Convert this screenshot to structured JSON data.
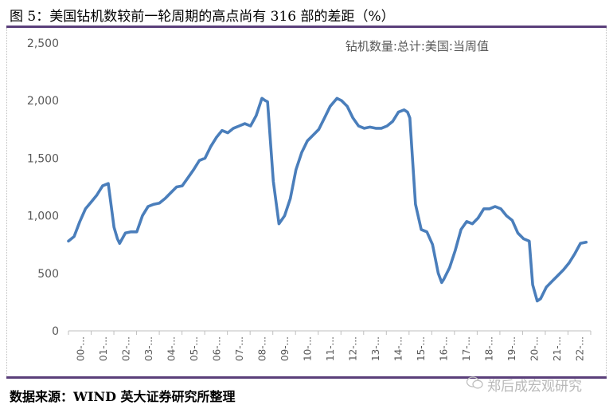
{
  "figure": {
    "title": "图 5：美国钻机数较前一轮周期的高点尚有 316 部的差距（%）",
    "source": "数据来源：WIND  英大证券研究所整理",
    "watermark": "郑后成宏观研究"
  },
  "chart_data": {
    "type": "line",
    "title": "",
    "xlabel": "",
    "ylabel": "",
    "ylim": [
      0,
      2500
    ],
    "yticks": [
      0,
      500,
      1000,
      1500,
      2000,
      2500
    ],
    "ytick_labels": [
      "0",
      "500",
      "1,000",
      "1,500",
      "2,000",
      "2,500"
    ],
    "xtick_labels": [
      "00-...",
      "01-...",
      "02-...",
      "03-...",
      "04-...",
      "05-...",
      "06-...",
      "07-...",
      "08-...",
      "09-...",
      "10-...",
      "11-...",
      "12-...",
      "13-...",
      "14-...",
      "15-...",
      "16-...",
      "17-...",
      "18-...",
      "19-...",
      "20-...",
      "21-...",
      "22-..."
    ],
    "legend": "top-right",
    "grid": false,
    "color": "#4a7ebb",
    "series": [
      {
        "name": "钻机数量:总计:美国:当周值",
        "x": [
          2000.0,
          2000.25,
          2000.5,
          2000.75,
          2001.0,
          2001.25,
          2001.5,
          2001.75,
          2002.0,
          2002.15,
          2002.25,
          2002.5,
          2002.75,
          2003.0,
          2003.25,
          2003.5,
          2003.75,
          2004.0,
          2004.25,
          2004.5,
          2004.75,
          2005.0,
          2005.25,
          2005.5,
          2005.75,
          2006.0,
          2006.25,
          2006.5,
          2006.75,
          2007.0,
          2007.25,
          2007.5,
          2007.75,
          2008.0,
          2008.25,
          2008.5,
          2008.65,
          2008.75,
          2009.0,
          2009.25,
          2009.5,
          2009.75,
          2010.0,
          2010.25,
          2010.5,
          2010.75,
          2011.0,
          2011.25,
          2011.5,
          2011.8,
          2012.0,
          2012.25,
          2012.5,
          2012.75,
          2013.0,
          2013.25,
          2013.5,
          2013.75,
          2014.0,
          2014.25,
          2014.5,
          2014.75,
          2014.9,
          2015.0,
          2015.25,
          2015.5,
          2015.75,
          2016.0,
          2016.25,
          2016.4,
          2016.5,
          2016.75,
          2017.0,
          2017.25,
          2017.5,
          2017.75,
          2018.0,
          2018.25,
          2018.5,
          2018.75,
          2019.0,
          2019.25,
          2019.5,
          2019.75,
          2020.0,
          2020.25,
          2020.4,
          2020.6,
          2020.75,
          2021.0,
          2021.25,
          2021.5,
          2021.75,
          2022.0,
          2022.25,
          2022.5,
          2022.75
        ],
        "y": [
          780,
          820,
          950,
          1060,
          1120,
          1180,
          1260,
          1280,
          900,
          800,
          760,
          850,
          860,
          860,
          1000,
          1080,
          1100,
          1110,
          1150,
          1200,
          1250,
          1260,
          1330,
          1400,
          1480,
          1500,
          1600,
          1680,
          1740,
          1720,
          1760,
          1780,
          1800,
          1780,
          1870,
          2020,
          2000,
          1990,
          1300,
          930,
          1000,
          1150,
          1400,
          1550,
          1650,
          1700,
          1750,
          1850,
          1950,
          2020,
          2000,
          1950,
          1850,
          1780,
          1760,
          1770,
          1760,
          1760,
          1780,
          1820,
          1900,
          1920,
          1900,
          1850,
          1100,
          880,
          860,
          750,
          500,
          420,
          450,
          550,
          700,
          880,
          950,
          930,
          980,
          1060,
          1060,
          1080,
          1060,
          1000,
          960,
          850,
          800,
          780,
          400,
          260,
          280,
          380,
          430,
          480,
          530,
          590,
          670,
          760,
          770
        ]
      }
    ]
  }
}
